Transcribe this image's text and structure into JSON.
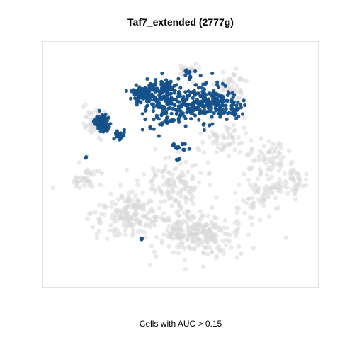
{
  "chart_data": {
    "type": "scatter",
    "title": "Taf7_extended (2777g)",
    "xlabel": "Cells with AUC > 0.15",
    "ylabel": "",
    "grid": false,
    "legend": "none",
    "axis_ticks": false,
    "colors": {
      "below_threshold": "#d9d9d9",
      "above_threshold": "#14508a",
      "frame": "#c8c8c8",
      "background": "#ffffff"
    },
    "xlim": [
      0,
      100
    ],
    "ylim": [
      0,
      100
    ],
    "series": [
      {
        "clusters": [
          {
            "cx": 56,
            "cy": 78,
            "rx": 15,
            "ry": 8,
            "n": 260
          },
          {
            "cx": 32,
            "cy": 70,
            "rx": 12,
            "ry": 8,
            "n": 180
          },
          {
            "cx": 16,
            "cy": 55,
            "rx": 5,
            "ry": 5,
            "n": 40
          },
          {
            "cx": 48,
            "cy": 58,
            "rx": 10,
            "ry": 10,
            "n": 120
          },
          {
            "cx": 80,
            "cy": 62,
            "rx": 8,
            "ry": 8,
            "n": 80
          },
          {
            "cx": 91,
            "cy": 56,
            "rx": 4,
            "ry": 6,
            "n": 40
          },
          {
            "cx": 81,
            "cy": 46,
            "rx": 6,
            "ry": 6,
            "n": 50
          },
          {
            "cx": 66,
            "cy": 40,
            "rx": 8,
            "ry": 6,
            "n": 60
          },
          {
            "cx": 19,
            "cy": 32,
            "rx": 5,
            "ry": 5,
            "n": 40
          },
          {
            "cx": 68,
            "cy": 18,
            "rx": 5,
            "ry": 6,
            "n": 50
          },
          {
            "cx": 53,
            "cy": 12,
            "rx": 4,
            "ry": 3,
            "n": 25
          }
        ]
      },
      {
        "clusters": [
          {
            "cx": 45,
            "cy": 25,
            "rx": 8,
            "ry": 8,
            "n": 200
          },
          {
            "cx": 60,
            "cy": 25,
            "rx": 8,
            "ry": 7,
            "n": 190
          },
          {
            "cx": 36,
            "cy": 21,
            "rx": 4,
            "ry": 3,
            "n": 90
          },
          {
            "cx": 22,
            "cy": 33,
            "rx": 3,
            "ry": 3,
            "n": 80
          },
          {
            "cx": 28,
            "cy": 38,
            "rx": 2,
            "ry": 2,
            "n": 25
          },
          {
            "cx": 44,
            "cy": 18,
            "rx": 4,
            "ry": 2,
            "n": 30
          },
          {
            "cx": 53,
            "cy": 13,
            "rx": 1.5,
            "ry": 1.5,
            "n": 12
          },
          {
            "cx": 50,
            "cy": 43,
            "rx": 3,
            "ry": 2,
            "n": 15
          },
          {
            "cx": 70,
            "cy": 28,
            "rx": 2,
            "ry": 4,
            "n": 25
          },
          {
            "cx": 36,
            "cy": 80,
            "rx": 0.4,
            "ry": 0.5,
            "n": 4
          },
          {
            "cx": 16,
            "cy": 47,
            "rx": 0.4,
            "ry": 0.4,
            "n": 2
          },
          {
            "cx": 49,
            "cy": 48,
            "rx": 0.4,
            "ry": 0.5,
            "n": 3
          }
        ]
      }
    ]
  }
}
